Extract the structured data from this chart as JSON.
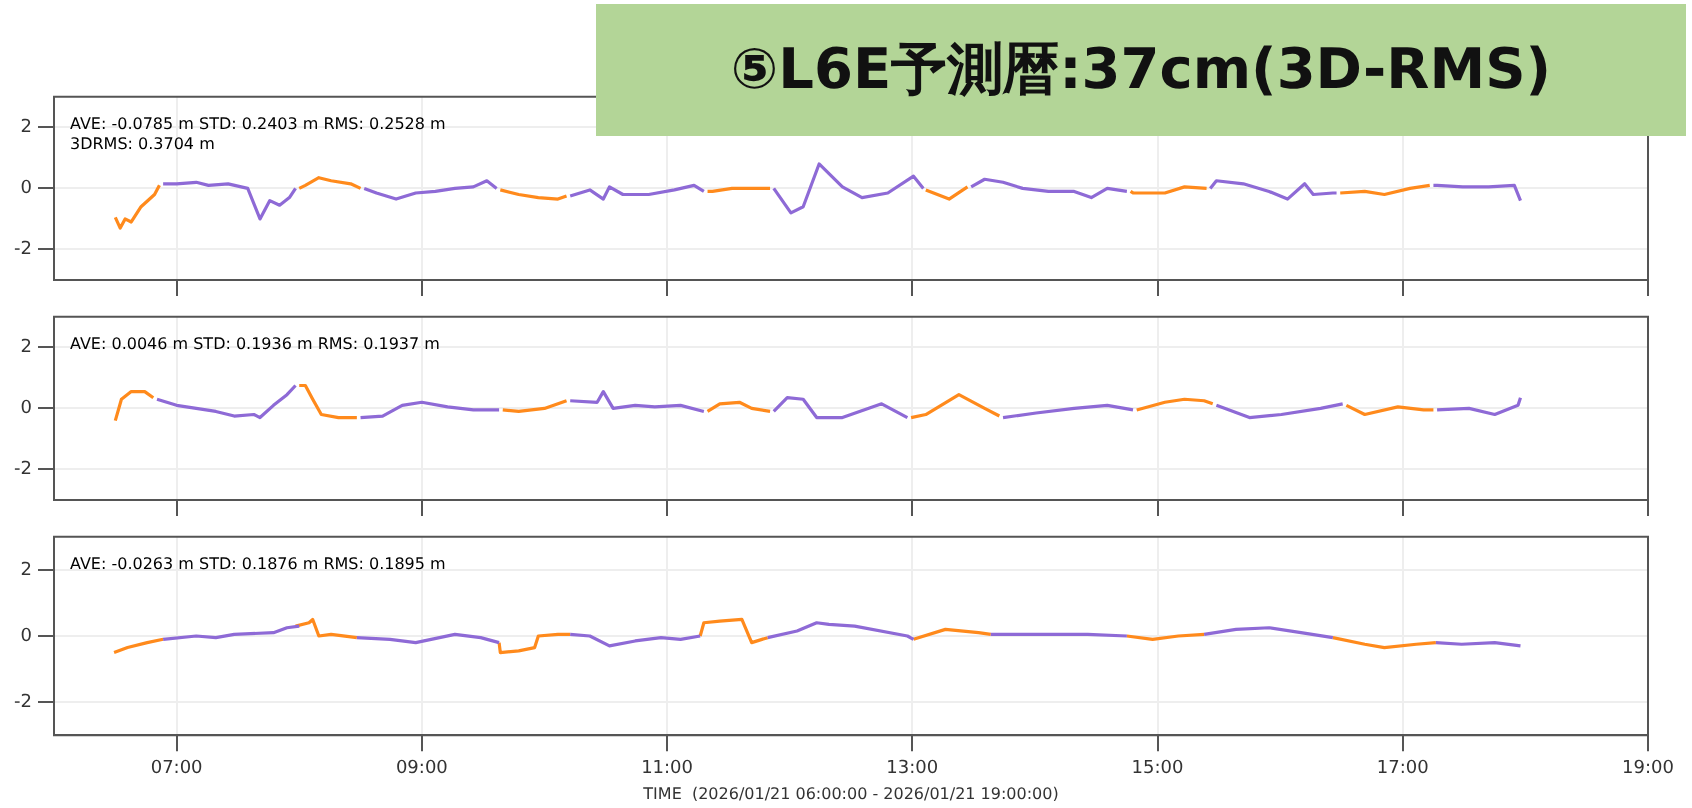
{
  "chart_data": [
    {
      "type": "line",
      "title": "⑤L6E予測暦:37cm(3D-RMS)",
      "annotations": [
        "AVE: -0.0785 m STD: 0.2403 m RMS: 0.2528 m",
        "3DRMS: 0.3704 m"
      ],
      "xlim": [
        6,
        19
      ],
      "ylim": [
        -3,
        3
      ],
      "yticks": [
        -2,
        0,
        2
      ],
      "xticks": [
        {
          "value": 7,
          "label": null
        },
        {
          "value": 9,
          "label": null
        },
        {
          "value": 11,
          "label": null
        },
        {
          "value": 13,
          "label": null
        },
        {
          "value": 15,
          "label": null
        },
        {
          "value": 17,
          "label": null
        },
        {
          "value": 19,
          "label": null
        }
      ],
      "grid": true,
      "tick_labels": "y",
      "series": [
        {
          "color": "#8e6ad6",
          "x": [
            6.89,
            7.0,
            7.16,
            7.26,
            7.42,
            7.58,
            7.68,
            7.76,
            7.84,
            7.92,
            7.97,
            8.2,
            8.53,
            8.63,
            8.79,
            8.95,
            9.11,
            9.27,
            9.42,
            9.53,
            9.61,
            9.9,
            10.21,
            10.37,
            10.48,
            10.53,
            10.64,
            10.85,
            11.06,
            11.22,
            11.3,
            11.6,
            11.87,
            12.01,
            12.11,
            12.24,
            12.43,
            12.59,
            12.8,
            13.01,
            13.09,
            13.3,
            13.48,
            13.59,
            13.74,
            13.9,
            14.11,
            14.32,
            14.46,
            14.59,
            14.75,
            15.1,
            15.43,
            15.48,
            15.7,
            15.91,
            16.06,
            16.2,
            16.27,
            16.43,
            16.46,
            16.8,
            17.25,
            17.28,
            17.49,
            17.7,
            17.91,
            17.96
          ],
          "values": [
            0.15,
            0.15,
            0.2,
            0.1,
            0.15,
            0.0,
            -1.0,
            -0.4,
            -0.55,
            -0.3,
            0.0,
            null,
            0.0,
            -0.15,
            -0.35,
            -0.15,
            -0.1,
            0.0,
            0.05,
            0.25,
            0.0,
            null,
            -0.25,
            -0.05,
            -0.35,
            0.05,
            -0.2,
            -0.2,
            -0.05,
            0.1,
            -0.1,
            null,
            0.0,
            -0.8,
            -0.6,
            0.8,
            0.05,
            -0.3,
            -0.15,
            0.4,
            0.0,
            null,
            0.05,
            0.3,
            0.2,
            0.0,
            -0.1,
            -0.1,
            -0.3,
            0.0,
            -0.1,
            null,
            0.0,
            0.25,
            0.15,
            -0.1,
            -0.35,
            0.15,
            -0.2,
            -0.15,
            -0.15,
            null,
            0.1,
            0.1,
            0.05,
            0.05,
            0.1,
            -0.4
          ]
        },
        {
          "color": "#ff8a1c",
          "x": [
            6.5,
            6.54,
            6.58,
            6.63,
            6.71,
            6.82,
            6.86,
            7.4,
            8.0,
            8.05,
            8.16,
            8.26,
            8.42,
            8.5,
            9.0,
            9.64,
            9.79,
            9.95,
            10.11,
            10.18,
            10.8,
            11.33,
            11.37,
            11.53,
            11.69,
            11.84,
            12.5,
            13.11,
            13.3,
            13.45,
            14.1,
            14.78,
            14.8,
            15.06,
            15.22,
            15.4,
            16.0,
            16.49,
            16.69,
            16.85,
            17.06,
            17.22
          ],
          "values": [
            -0.95,
            -1.3,
            -1.0,
            -1.1,
            -0.6,
            -0.2,
            0.1,
            null,
            0.0,
            0.1,
            0.35,
            0.25,
            0.15,
            0.0,
            null,
            -0.05,
            -0.2,
            -0.3,
            -0.35,
            -0.25,
            null,
            -0.1,
            -0.1,
            0.0,
            0.0,
            0.0,
            null,
            -0.05,
            -0.35,
            0.05,
            null,
            -0.1,
            -0.15,
            -0.15,
            0.05,
            0.0,
            null,
            -0.15,
            -0.1,
            -0.2,
            0.0,
            0.1
          ]
        }
      ]
    },
    {
      "type": "line",
      "annotations": [
        "AVE: 0.0046 m STD: 0.1936 m RMS: 0.1937 m"
      ],
      "xlim": [
        6,
        19
      ],
      "ylim": [
        -3,
        3
      ],
      "yticks": [
        -2,
        0,
        2
      ],
      "xticks": [
        {
          "value": 7,
          "label": null
        },
        {
          "value": 9,
          "label": null
        },
        {
          "value": 11,
          "label": null
        },
        {
          "value": 13,
          "label": null
        },
        {
          "value": 15,
          "label": null
        },
        {
          "value": 17,
          "label": null
        },
        {
          "value": 19,
          "label": null
        }
      ],
      "grid": true,
      "tick_labels": "y",
      "series": [
        {
          "color": "#8e6ad6",
          "x": [
            6.84,
            7.0,
            7.16,
            7.32,
            7.47,
            7.63,
            7.68,
            7.79,
            7.9,
            7.97,
            8.2,
            8.5,
            8.68,
            8.84,
            9.0,
            9.21,
            9.42,
            9.63,
            9.9,
            10.21,
            10.43,
            10.48,
            10.56,
            10.74,
            10.9,
            11.11,
            11.3,
            11.6,
            11.87,
            11.98,
            12.11,
            12.22,
            12.43,
            12.75,
            12.96,
            13.4,
            13.74,
            14.01,
            14.32,
            14.59,
            14.8,
            15.1,
            15.48,
            15.75,
            16.01,
            16.33,
            16.51,
            16.9,
            17.28,
            17.54,
            17.75,
            17.94,
            17.96
          ],
          "values": [
            0.3,
            0.1,
            0.0,
            -0.1,
            -0.25,
            -0.2,
            -0.3,
            0.1,
            0.45,
            0.75,
            null,
            -0.3,
            -0.25,
            0.1,
            0.2,
            0.05,
            -0.05,
            -0.05,
            null,
            0.25,
            0.2,
            0.55,
            0.0,
            0.1,
            0.05,
            0.1,
            -0.1,
            null,
            -0.1,
            0.35,
            0.3,
            -0.3,
            -0.3,
            0.15,
            -0.3,
            null,
            -0.3,
            -0.15,
            0.0,
            0.1,
            -0.05,
            null,
            0.1,
            -0.3,
            -0.2,
            0.0,
            0.15,
            null,
            -0.05,
            0.0,
            -0.2,
            0.1,
            0.35
          ]
        },
        {
          "color": "#ff8a1c",
          "x": [
            6.5,
            6.55,
            6.63,
            6.74,
            6.81,
            7.4,
            8.0,
            8.05,
            8.11,
            8.18,
            8.32,
            8.47,
            9.0,
            9.66,
            9.79,
            10.0,
            10.18,
            10.8,
            11.33,
            11.43,
            11.59,
            11.69,
            11.84,
            12.5,
            12.99,
            13.11,
            13.38,
            13.59,
            13.71,
            14.3,
            14.83,
            15.06,
            15.22,
            15.38,
            15.45,
            16.0,
            16.54,
            16.69,
            16.96,
            17.17,
            17.25
          ],
          "values": [
            -0.4,
            0.3,
            0.55,
            0.55,
            0.35,
            null,
            0.75,
            0.75,
            0.3,
            -0.2,
            -0.3,
            -0.3,
            null,
            -0.05,
            -0.1,
            0.0,
            0.25,
            null,
            -0.1,
            0.15,
            0.2,
            0.0,
            -0.1,
            null,
            -0.3,
            -0.2,
            0.45,
            0.0,
            -0.25,
            null,
            -0.05,
            0.2,
            0.3,
            0.25,
            0.15,
            null,
            0.1,
            -0.2,
            0.05,
            -0.05,
            -0.05
          ]
        }
      ]
    },
    {
      "type": "line",
      "xlabel": "TIME  (2026/01/21 06:00:00 - 2026/01/21 19:00:00)",
      "annotations": [
        "AVE: -0.0263 m STD: 0.1876 m RMS: 0.1895 m"
      ],
      "xlim": [
        6,
        19
      ],
      "ylim": [
        -3,
        3
      ],
      "yticks": [
        -2,
        0,
        2
      ],
      "xticks": [
        {
          "value": 7,
          "label": "07:00"
        },
        {
          "value": 9,
          "label": "09:00"
        },
        {
          "value": 11,
          "label": "11:00"
        },
        {
          "value": 13,
          "label": "13:00"
        },
        {
          "value": 15,
          "label": "15:00"
        },
        {
          "value": 17,
          "label": "17:00"
        },
        {
          "value": 19,
          "label": "19:00"
        }
      ],
      "grid": true,
      "series": [
        {
          "color": "#8e6ad6",
          "x": [
            6.89,
            7.16,
            7.32,
            7.47,
            7.79,
            7.9,
            8.0,
            8.2,
            8.47,
            8.74,
            8.95,
            9.27,
            9.48,
            9.63,
            9.9,
            10.21,
            10.37,
            10.53,
            10.74,
            10.95,
            11.11,
            11.27,
            11.5,
            11.82,
            12.06,
            12.22,
            12.32,
            12.53,
            12.96,
            13.01,
            13.3,
            13.64,
            14.06,
            14.43,
            14.75,
            15.1,
            15.38,
            15.64,
            15.91,
            16.17,
            16.43,
            16.9,
            17.27,
            17.48,
            17.75,
            17.96
          ],
          "values": [
            -0.1,
            0.0,
            -0.05,
            0.05,
            0.1,
            0.25,
            0.3,
            null,
            -0.05,
            -0.1,
            -0.2,
            0.05,
            -0.05,
            -0.2,
            null,
            0.05,
            0.0,
            -0.3,
            -0.15,
            -0.05,
            -0.1,
            0.0,
            null,
            -0.05,
            0.15,
            0.4,
            0.35,
            0.3,
            0.0,
            -0.1,
            null,
            0.05,
            0.05,
            0.05,
            0.0,
            null,
            0.05,
            0.2,
            0.25,
            0.1,
            -0.05,
            null,
            -0.2,
            -0.25,
            -0.2,
            -0.3
          ]
        },
        {
          "color": "#ff8a1c",
          "x": [
            6.49,
            6.6,
            6.76,
            6.89,
            7.4,
            7.97,
            8.08,
            8.11,
            8.16,
            8.26,
            8.47,
            9.0,
            9.63,
            9.64,
            9.79,
            9.92,
            9.95,
            10.11,
            10.21,
            10.8,
            11.27,
            11.3,
            11.43,
            11.61,
            11.69,
            11.82,
            12.5,
            13.01,
            13.27,
            13.54,
            13.64,
            14.2,
            14.75,
            14.96,
            15.17,
            15.38,
            15.9,
            16.43,
            16.69,
            16.85,
            17.11,
            17.27
          ],
          "values": [
            -0.5,
            -0.35,
            -0.2,
            -0.1,
            null,
            0.3,
            0.4,
            0.5,
            0.0,
            0.05,
            -0.05,
            null,
            -0.2,
            -0.5,
            -0.45,
            -0.35,
            0.0,
            0.05,
            0.05,
            null,
            0.0,
            0.4,
            0.45,
            0.5,
            -0.2,
            -0.05,
            null,
            -0.1,
            0.2,
            0.1,
            0.05,
            null,
            0.0,
            -0.1,
            0.0,
            0.05,
            null,
            -0.05,
            -0.25,
            -0.35,
            -0.25,
            -0.2
          ]
        }
      ]
    }
  ]
}
